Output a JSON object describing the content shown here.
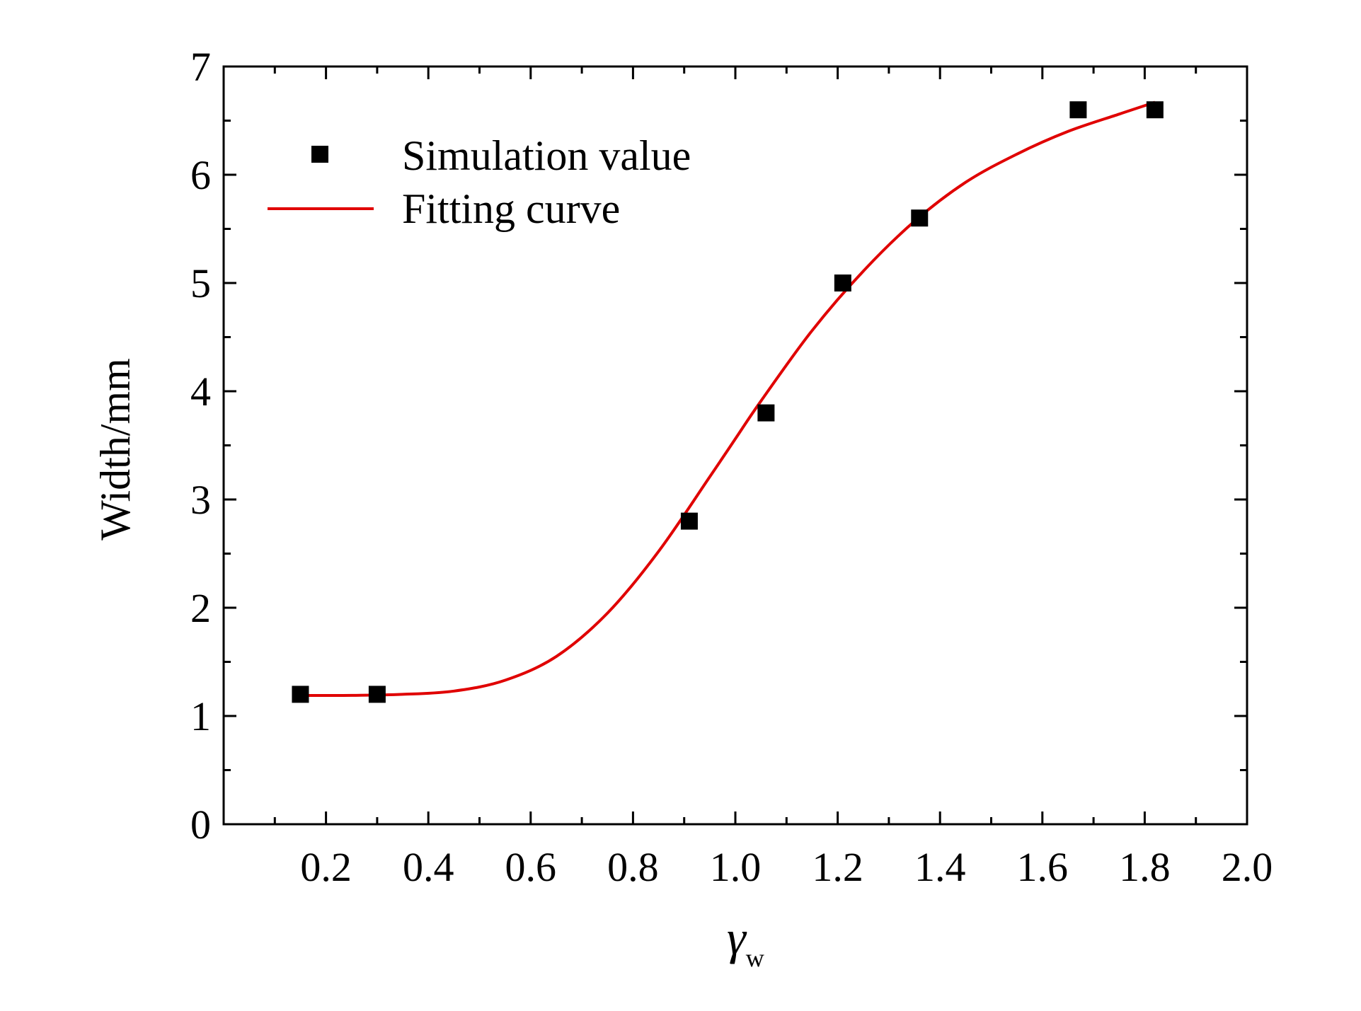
{
  "chart_data": {
    "type": "scatter",
    "title": "",
    "xlabel": "γ",
    "xlabel_subscript": "w",
    "ylabel": "Width/mm",
    "xlim": [
      0.0,
      2.0
    ],
    "ylim": [
      0,
      7
    ],
    "xticks": [
      0.2,
      0.4,
      0.6,
      0.8,
      1.0,
      1.2,
      1.4,
      1.6,
      1.8,
      2.0
    ],
    "xtick_labels": [
      "0.2",
      "0.4",
      "0.6",
      "0.8",
      "1.0",
      "1.2",
      "1.4",
      "1.6",
      "1.8",
      "2.0"
    ],
    "yticks": [
      0,
      1,
      2,
      3,
      4,
      5,
      6,
      7
    ],
    "ytick_labels": [
      "0",
      "1",
      "2",
      "3",
      "4",
      "5",
      "6",
      "7"
    ],
    "grid": false,
    "legend_position": "top-left",
    "series": [
      {
        "name": "Simulation value",
        "kind": "scatter",
        "marker": "square",
        "color": "#000000",
        "x": [
          0.15,
          0.3,
          0.91,
          1.06,
          1.21,
          1.36,
          1.67,
          1.82
        ],
        "y": [
          1.2,
          1.2,
          2.8,
          3.8,
          5.0,
          5.6,
          6.6,
          6.6
        ]
      },
      {
        "name": "Fitting curve",
        "kind": "line",
        "color": "#e00000",
        "x": [
          0.15,
          0.25,
          0.35,
          0.45,
          0.55,
          0.65,
          0.75,
          0.85,
          0.95,
          1.0,
          1.05,
          1.15,
          1.25,
          1.35,
          1.45,
          1.55,
          1.65,
          1.75,
          1.82
        ],
        "y": [
          1.19,
          1.19,
          1.2,
          1.23,
          1.33,
          1.55,
          1.95,
          2.52,
          3.21,
          3.56,
          3.91,
          4.56,
          5.11,
          5.57,
          5.93,
          6.19,
          6.4,
          6.56,
          6.67
        ]
      }
    ]
  }
}
